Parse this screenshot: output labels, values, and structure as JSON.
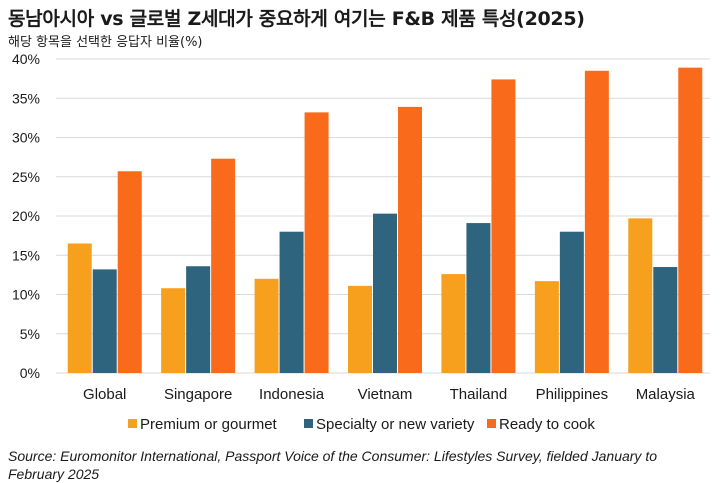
{
  "title": "동남아시아 vs 글로벌 Z세대가 중요하게 여기는 F&B 제품 특성(2025)",
  "subtitle": "해당 항목을 선택한 응답자 비율(%)",
  "source": "Source: Euromonitor International, Passport Voice of the Consumer: Lifestyles Survey, fielded January to February 2025",
  "chart_data": {
    "type": "bar",
    "categories": [
      "Global",
      "Singapore",
      "Indonesia",
      "Vietnam",
      "Thailand",
      "Philippines",
      "Malaysia"
    ],
    "series": [
      {
        "name": "Premium or gourmet",
        "color": "#F7A01D",
        "values": [
          16.5,
          10.8,
          12.0,
          11.1,
          12.6,
          11.7,
          19.7
        ]
      },
      {
        "name": "Specialty or new variety",
        "color": "#2F647E",
        "values": [
          13.2,
          13.6,
          18.0,
          20.3,
          19.1,
          18.0,
          13.5
        ]
      },
      {
        "name": "Ready to cook",
        "color": "#F96A1B",
        "values": [
          25.7,
          27.3,
          33.2,
          33.9,
          37.4,
          38.5,
          38.9
        ]
      }
    ],
    "yticks": [
      "0%",
      "5%",
      "10%",
      "15%",
      "20%",
      "25%",
      "30%",
      "35%",
      "40%"
    ],
    "ylim": [
      0,
      40
    ],
    "grid": true,
    "legend_position": "bottom"
  }
}
